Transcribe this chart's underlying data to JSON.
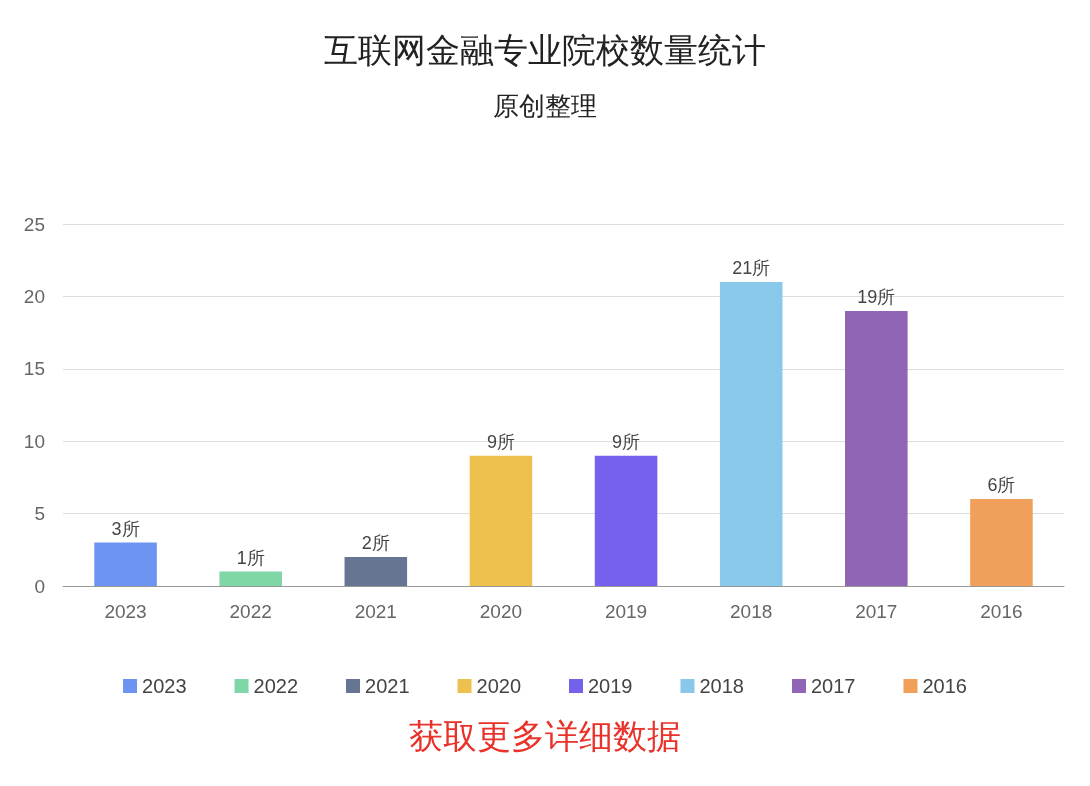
{
  "chart_data": {
    "type": "bar",
    "title": "互联网金融专业院校数量统计",
    "subtitle": "原创整理",
    "categories": [
      "2023",
      "2022",
      "2021",
      "2020",
      "2019",
      "2018",
      "2017",
      "2016"
    ],
    "stacked": true,
    "series": [
      {
        "name": "2023",
        "color": "#6e94f2",
        "values": [
          3,
          null,
          null,
          null,
          null,
          null,
          null,
          null
        ],
        "value_labels": [
          "3所",
          null,
          null,
          null,
          null,
          null,
          null,
          null
        ]
      },
      {
        "name": "2022",
        "color": "#7fd6a6",
        "values": [
          null,
          1,
          null,
          null,
          null,
          null,
          null,
          null
        ],
        "value_labels": [
          null,
          "1所",
          null,
          null,
          null,
          null,
          null,
          null
        ]
      },
      {
        "name": "2021",
        "color": "#667592",
        "values": [
          null,
          null,
          2,
          null,
          null,
          null,
          null,
          null
        ],
        "value_labels": [
          null,
          null,
          "2所",
          null,
          null,
          null,
          null,
          null
        ]
      },
      {
        "name": "2020",
        "color": "#ecc14d",
        "values": [
          null,
          null,
          null,
          9,
          null,
          null,
          null,
          null
        ],
        "value_labels": [
          null,
          null,
          null,
          "9所",
          null,
          null,
          null,
          null
        ]
      },
      {
        "name": "2019",
        "color": "#7462ee",
        "values": [
          null,
          null,
          null,
          null,
          9,
          null,
          null,
          null
        ],
        "value_labels": [
          null,
          null,
          null,
          null,
          "9所",
          null,
          null,
          null
        ]
      },
      {
        "name": "2018",
        "color": "#88c8ea",
        "values": [
          null,
          null,
          null,
          null,
          null,
          21,
          null,
          null
        ],
        "value_labels": [
          null,
          null,
          null,
          null,
          null,
          "21所",
          null,
          null
        ]
      },
      {
        "name": "2017",
        "color": "#9165b5",
        "values": [
          null,
          null,
          null,
          null,
          null,
          null,
          19,
          null
        ],
        "value_labels": [
          null,
          null,
          null,
          null,
          null,
          null,
          "19所",
          null
        ]
      },
      {
        "name": "2016",
        "color": "#f0a05a",
        "values": [
          null,
          null,
          null,
          null,
          null,
          null,
          null,
          6
        ],
        "value_labels": [
          null,
          null,
          null,
          null,
          null,
          null,
          null,
          "6所"
        ]
      }
    ],
    "ylim": [
      0,
      25
    ],
    "yticks": [
      0,
      5,
      10,
      15,
      20,
      25
    ],
    "grid": "y",
    "legend": "bottom",
    "annotations": [
      "获取更多详细数据"
    ]
  }
}
